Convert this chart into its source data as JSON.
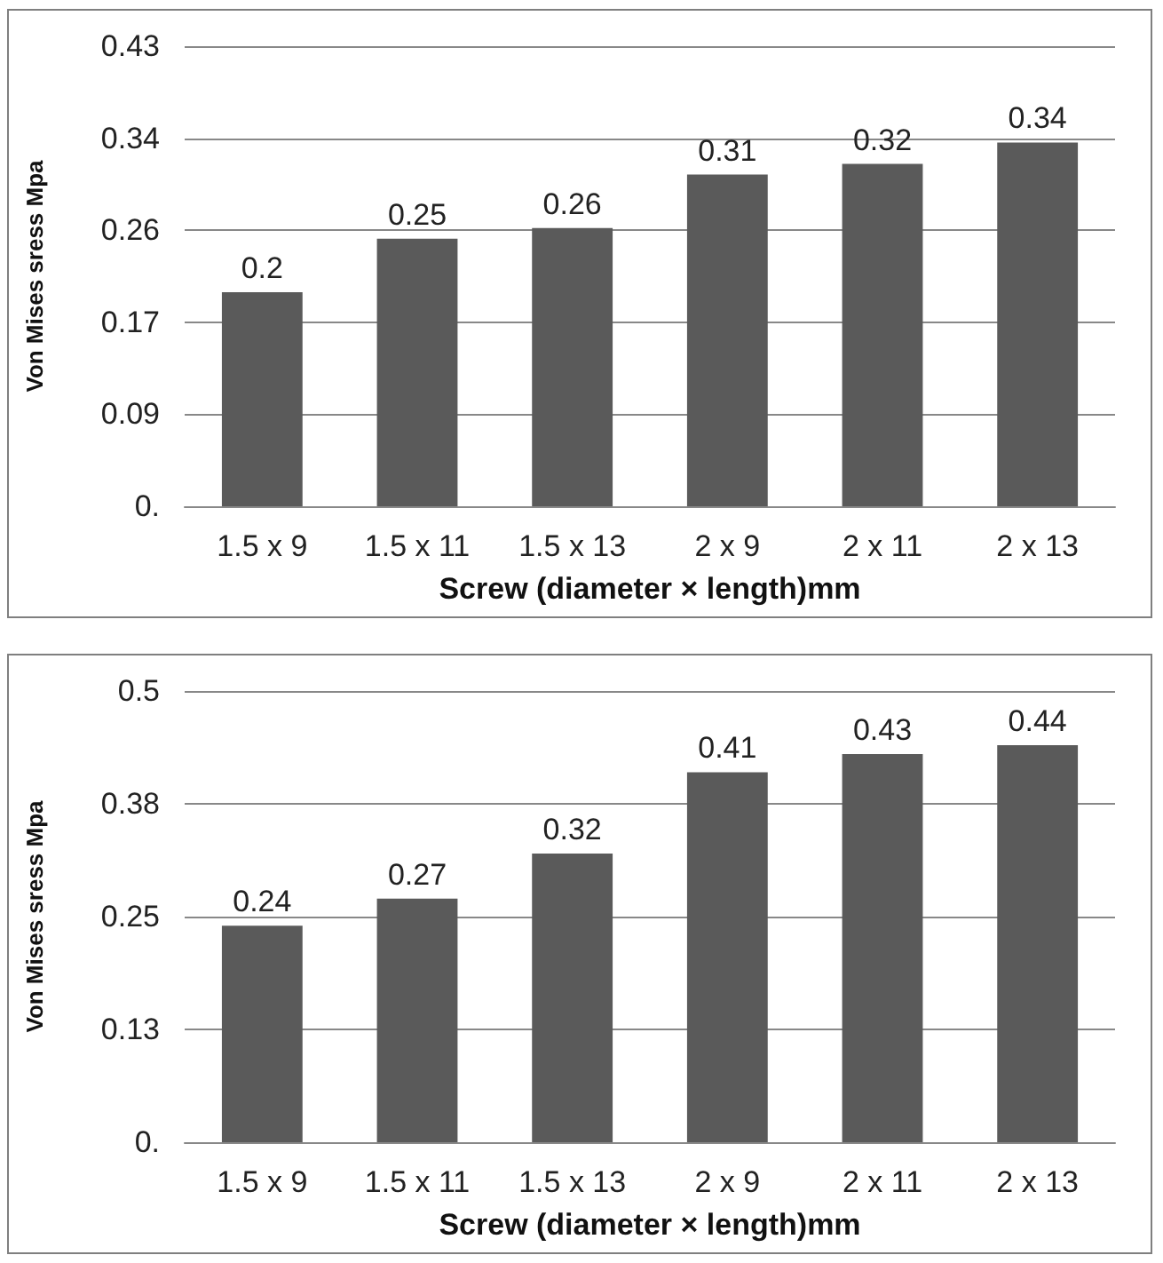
{
  "chart_data": [
    {
      "type": "bar",
      "categories": [
        "1.5 x 9",
        "1.5 x 11",
        "1.5 x 13",
        "2 x 9",
        "2 x 11",
        "2 x 13"
      ],
      "values": [
        0.2,
        0.25,
        0.26,
        0.31,
        0.32,
        0.34
      ],
      "color": "#5a5a5a",
      "xlabel": "Screw (diameter × length)mm",
      "ylabel": "Von Mises sress Mpa",
      "ylim": [
        0,
        0.43
      ],
      "yticks": [
        {
          "value": 0,
          "label": "0."
        },
        {
          "value": 0.086,
          "label": "0.09"
        },
        {
          "value": 0.172,
          "label": "0.17"
        },
        {
          "value": 0.258,
          "label": "0.26"
        },
        {
          "value": 0.344,
          "label": "0.34"
        },
        {
          "value": 0.43,
          "label": "0.43"
        }
      ],
      "grid": "y",
      "data_labels": true
    },
    {
      "type": "bar",
      "categories": [
        "1.5 x 9",
        "1.5 x 11",
        "1.5 x 13",
        "2 x 9",
        "2 x 11",
        "2 x 13"
      ],
      "values": [
        0.24,
        0.27,
        0.32,
        0.41,
        0.43,
        0.44
      ],
      "color": "#5a5a5a",
      "xlabel": "Screw (diameter × length)mm",
      "ylabel": "Von Mises sress Mpa",
      "ylim": [
        0,
        0.5
      ],
      "yticks": [
        {
          "value": 0,
          "label": "0."
        },
        {
          "value": 0.125,
          "label": "0.13"
        },
        {
          "value": 0.25,
          "label": "0.25"
        },
        {
          "value": 0.375,
          "label": "0.38"
        },
        {
          "value": 0.5,
          "label": "0.5"
        }
      ],
      "grid": "y",
      "data_labels": true
    }
  ]
}
